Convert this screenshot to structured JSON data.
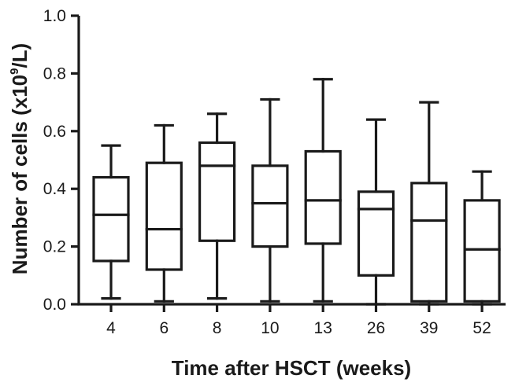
{
  "chart_data": {
    "type": "box",
    "title": "",
    "xlabel": "Time after HSCT (weeks)",
    "ylabel": "Number of cells (x10⁹/L)",
    "ylabel_parts": {
      "prefix": "Number of cells (x10",
      "superscript": "9",
      "suffix": "/L)"
    },
    "ylim": [
      0,
      1.0
    ],
    "yticks": [
      0.0,
      0.2,
      0.4,
      0.6,
      0.8,
      1.0
    ],
    "ytick_labels": [
      "0.0",
      "0.2",
      "0.4",
      "0.6",
      "0.8",
      "1.0"
    ],
    "grid": false,
    "categories": [
      "4",
      "6",
      "8",
      "10",
      "13",
      "26",
      "39",
      "52"
    ],
    "boxes": [
      {
        "category": "4",
        "min": 0.02,
        "q1": 0.15,
        "median": 0.31,
        "q3": 0.44,
        "max": 0.55
      },
      {
        "category": "6",
        "min": 0.01,
        "q1": 0.12,
        "median": 0.26,
        "q3": 0.49,
        "max": 0.62
      },
      {
        "category": "8",
        "min": 0.02,
        "q1": 0.22,
        "median": 0.48,
        "q3": 0.56,
        "max": 0.66
      },
      {
        "category": "10",
        "min": 0.01,
        "q1": 0.2,
        "median": 0.35,
        "q3": 0.48,
        "max": 0.71
      },
      {
        "category": "13",
        "min": 0.01,
        "q1": 0.21,
        "median": 0.36,
        "q3": 0.53,
        "max": 0.78
      },
      {
        "category": "26",
        "min": 0.0,
        "q1": 0.1,
        "median": 0.33,
        "q3": 0.39,
        "max": 0.64
      },
      {
        "category": "39",
        "min": 0.0,
        "q1": 0.01,
        "median": 0.29,
        "q3": 0.42,
        "max": 0.7
      },
      {
        "category": "52",
        "min": 0.0,
        "q1": 0.01,
        "median": 0.19,
        "q3": 0.36,
        "max": 0.46
      }
    ]
  },
  "colors": {
    "ink": "#1a1a1a",
    "background": "#ffffff"
  }
}
